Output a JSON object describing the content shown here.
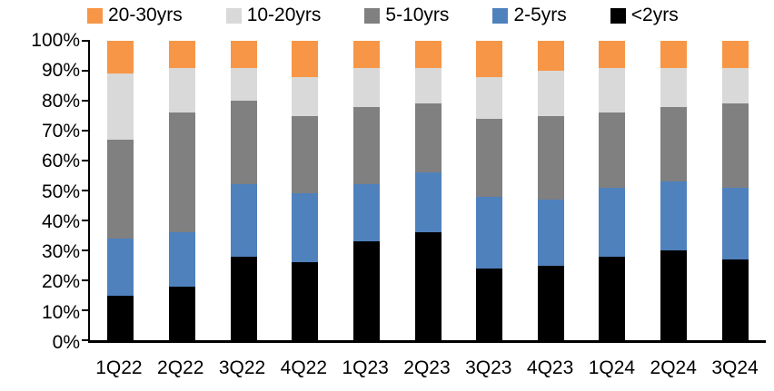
{
  "chart_data": {
    "type": "bar",
    "subtype": "stacked-100-percent",
    "title": "",
    "xlabel": "",
    "ylabel": "",
    "ylim": [
      0,
      100
    ],
    "grid": false,
    "legend_position": "top",
    "legend_order": [
      "20-30yrs",
      "10-20yrs",
      "5-10yrs",
      "2-5yrs",
      "<2yrs"
    ],
    "y_ticks": [
      "100%",
      "90%",
      "80%",
      "70%",
      "60%",
      "50%",
      "40%",
      "30%",
      "20%",
      "10%",
      "0%"
    ],
    "categories": [
      "1Q22",
      "2Q22",
      "3Q22",
      "4Q22",
      "1Q23",
      "2Q23",
      "3Q23",
      "4Q23",
      "1Q24",
      "2Q24",
      "3Q24"
    ],
    "series": [
      {
        "name": "<2yrs",
        "color": "#000000",
        "values": [
          15,
          18,
          28,
          26,
          33,
          36,
          24,
          25,
          28,
          30,
          27
        ]
      },
      {
        "name": "2-5yrs",
        "color": "#4F81BD",
        "values": [
          19,
          18,
          24,
          23,
          19,
          20,
          24,
          22,
          23,
          23,
          24
        ]
      },
      {
        "name": "5-10yrs",
        "color": "#808080",
        "values": [
          33,
          40,
          28,
          26,
          26,
          23,
          26,
          28,
          25,
          25,
          28
        ]
      },
      {
        "name": "10-20yrs",
        "color": "#D9D9D9",
        "values": [
          22,
          15,
          11,
          13,
          13,
          12,
          14,
          15,
          15,
          13,
          12
        ]
      },
      {
        "name": "20-30yrs",
        "color": "#F79646",
        "values": [
          11,
          9,
          9,
          12,
          9,
          9,
          12,
          10,
          9,
          9,
          9
        ]
      }
    ],
    "axis_color": "#000000",
    "text_color": "#000000",
    "background_color": "#FFFFFF"
  }
}
